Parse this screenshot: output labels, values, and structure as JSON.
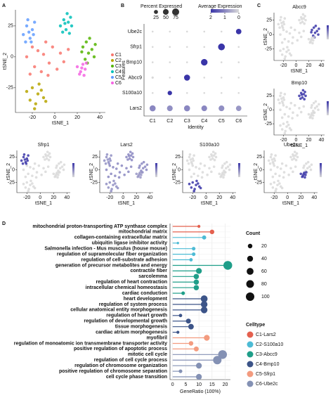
{
  "panel_labels": [
    "A",
    "B",
    "C",
    "D"
  ],
  "chart_data": [
    {
      "type": "scatter",
      "xlabel": "tSNE_1",
      "ylabel": "tSNE_2",
      "xlim": [
        -35,
        45
      ],
      "ylim": [
        -45,
        38
      ],
      "xticks": [
        -20,
        0,
        20,
        40
      ],
      "yticks": [
        -25,
        0,
        25
      ],
      "series": [
        {
          "name": "C1",
          "color": "#f8766d",
          "x": [
            -25,
            -20,
            -18,
            -15,
            -12,
            -10,
            -8,
            -5,
            -2,
            2,
            5,
            8,
            12,
            -22,
            -6
          ],
          "y": [
            0,
            8,
            -8,
            5,
            -12,
            2,
            12,
            -5,
            8,
            -10,
            3,
            -4,
            6,
            -14,
            -15
          ]
        },
        {
          "name": "C2",
          "color": "#b7a500",
          "x": [
            -25,
            -22,
            -20,
            -17,
            -15,
            -12,
            -10,
            -18,
            -14,
            -8
          ],
          "y": [
            -28,
            -35,
            -25,
            -38,
            -30,
            -27,
            -33,
            -42,
            -22,
            -36
          ]
        },
        {
          "name": "C3",
          "color": "#53b400",
          "x": [
            25,
            28,
            30,
            33,
            35,
            27,
            31,
            36,
            29,
            24
          ],
          "y": [
            8,
            12,
            3,
            6,
            0,
            -2,
            15,
            10,
            -5,
            4
          ]
        },
        {
          "name": "C4",
          "color": "#00c0b8",
          "x": [
            5,
            8,
            10,
            12,
            14,
            7,
            11,
            15,
            9,
            13
          ],
          "y": [
            25,
            30,
            22,
            28,
            32,
            20,
            35,
            25,
            27,
            19
          ]
        },
        {
          "name": "C5",
          "color": "#619cff",
          "x": [
            -28,
            -25,
            -22,
            -20,
            -18,
            -24,
            -21,
            -26,
            -19,
            -23
          ],
          "y": [
            18,
            25,
            15,
            22,
            28,
            30,
            12,
            12,
            18,
            20
          ]
        },
        {
          "name": "C6",
          "color": "#f564e3",
          "x": [
            20,
            23,
            25,
            27,
            22,
            26,
            24,
            28
          ],
          "y": [
            -8,
            -12,
            -6,
            -10,
            -14,
            -15,
            -9,
            -5
          ]
        }
      ]
    },
    {
      "type": "dotplot",
      "xlabel": "Identity",
      "ylabel": "Features",
      "categories": [
        "C1",
        "C2",
        "C3",
        "C4",
        "C5",
        "C6"
      ],
      "features": [
        "Lars2",
        "S100a10",
        "Abcc9",
        "Bmp10",
        "Sfrp1",
        "Ube2c"
      ],
      "pct": [
        [
          55,
          50,
          55,
          50,
          50,
          45
        ],
        [
          5,
          30,
          5,
          5,
          5,
          5
        ],
        [
          8,
          5,
          55,
          5,
          5,
          5
        ],
        [
          5,
          5,
          5,
          65,
          5,
          5
        ],
        [
          5,
          5,
          5,
          5,
          70,
          5
        ],
        [
          5,
          5,
          5,
          5,
          5,
          45
        ]
      ],
      "avg": [
        [
          1,
          0.9,
          1,
          1,
          0.9,
          0.8
        ],
        [
          0,
          2,
          0,
          0,
          0,
          0
        ],
        [
          0,
          0,
          2,
          0,
          0,
          0
        ],
        [
          0,
          0,
          0,
          2,
          0,
          0
        ],
        [
          0,
          0,
          0,
          0,
          2,
          0
        ],
        [
          0,
          0,
          0,
          0,
          0,
          2
        ]
      ],
      "size_legend_title": "Percent Expressed",
      "size_legend": [
        25,
        50,
        75
      ],
      "color_legend_title": "Average Expression",
      "color_ticks": [
        2,
        1,
        0
      ],
      "colors": [
        "#d9d9d9",
        "#3a35a8"
      ]
    },
    {
      "type": "feature",
      "genes": [
        "Abcc9",
        "Bmp10",
        "Sfrp1",
        "Lars2",
        "S100a10",
        "Ube2c"
      ]
    },
    {
      "type": "lollipop",
      "xlabel": "GeneRatio (100%)",
      "xlim": [
        -1,
        22
      ],
      "xticks": [
        0,
        5,
        10,
        15,
        20
      ],
      "categories": [
        "mitochondrial proton-transporting ATP synthase complex",
        "mitochondrial matrix",
        "collagen-containing extracellular matrix",
        "ubiquitin ligase inhibitor activity",
        "Salmonella infection - Mus musculus (house mouse)",
        "regulation of supramolecular fiber organization",
        "regulation of cell-substrate adhesion",
        "generation of precursor metabolites and energy",
        "contractile fiber",
        "sarcolemma",
        "regulation of heart contraction",
        "intracellular chemical homeostasis",
        "cardiac conduction",
        "heart development",
        "regulation of system process",
        "cellular anatomical entity morphogenesis",
        "regulation of heart growth",
        "regulation of developmental growth",
        "tissue morphogenesis",
        "cardiac atrium morphogenesis",
        "myofibril",
        "regulation of monoatomic ion transmembrane transporter activity",
        "positive regulation of apoptotic process",
        "mitotic cell cycle",
        "regulation of cell cycle process",
        "regulation of chromosome organization",
        "positive regulation of chromosome separation",
        "cell cycle phase transition"
      ],
      "values": [
        10,
        15,
        12,
        2,
        8,
        8,
        7,
        21,
        10,
        9,
        9,
        9,
        4,
        12,
        12,
        12,
        3,
        6,
        7,
        2,
        13,
        7,
        9,
        19,
        17,
        10,
        3,
        10
      ],
      "counts": [
        5,
        20,
        15,
        2,
        10,
        10,
        8,
        110,
        40,
        30,
        30,
        30,
        10,
        60,
        55,
        55,
        8,
        25,
        35,
        5,
        40,
        20,
        25,
        110,
        100,
        40,
        10,
        40
      ],
      "colors": [
        "#e4604e",
        "#e4604e",
        "#4dbbd5",
        "#4dbbd5",
        "#4dbbd5",
        "#4dbbd5",
        "#4dbbd5",
        "#1f9e89",
        "#1f9e89",
        "#1f9e89",
        "#1f9e89",
        "#1f9e89",
        "#1f9e89",
        "#3c5488",
        "#3c5488",
        "#3c5488",
        "#3c5488",
        "#3c5488",
        "#3c5488",
        "#3c5488",
        "#f39b7f",
        "#f39b7f",
        "#f39b7f",
        "#8491b4",
        "#8491b4",
        "#8491b4",
        "#8491b4",
        "#8491b4"
      ],
      "size_legend_title": "Count",
      "size_ticks": [
        20,
        40,
        60,
        80,
        100
      ],
      "color_legend_title": "Celltype",
      "series": [
        {
          "name": "C1-Lars2",
          "color": "#e4604e"
        },
        {
          "name": "C2-S100a10",
          "color": "#4dbbd5"
        },
        {
          "name": "C3-Abcc9",
          "color": "#1f9e89"
        },
        {
          "name": "C4-Bmp10",
          "color": "#3c5488"
        },
        {
          "name": "C5-Sfrp1",
          "color": "#f39b7f"
        },
        {
          "name": "C6-Ube2c",
          "color": "#8491b4"
        }
      ]
    }
  ]
}
